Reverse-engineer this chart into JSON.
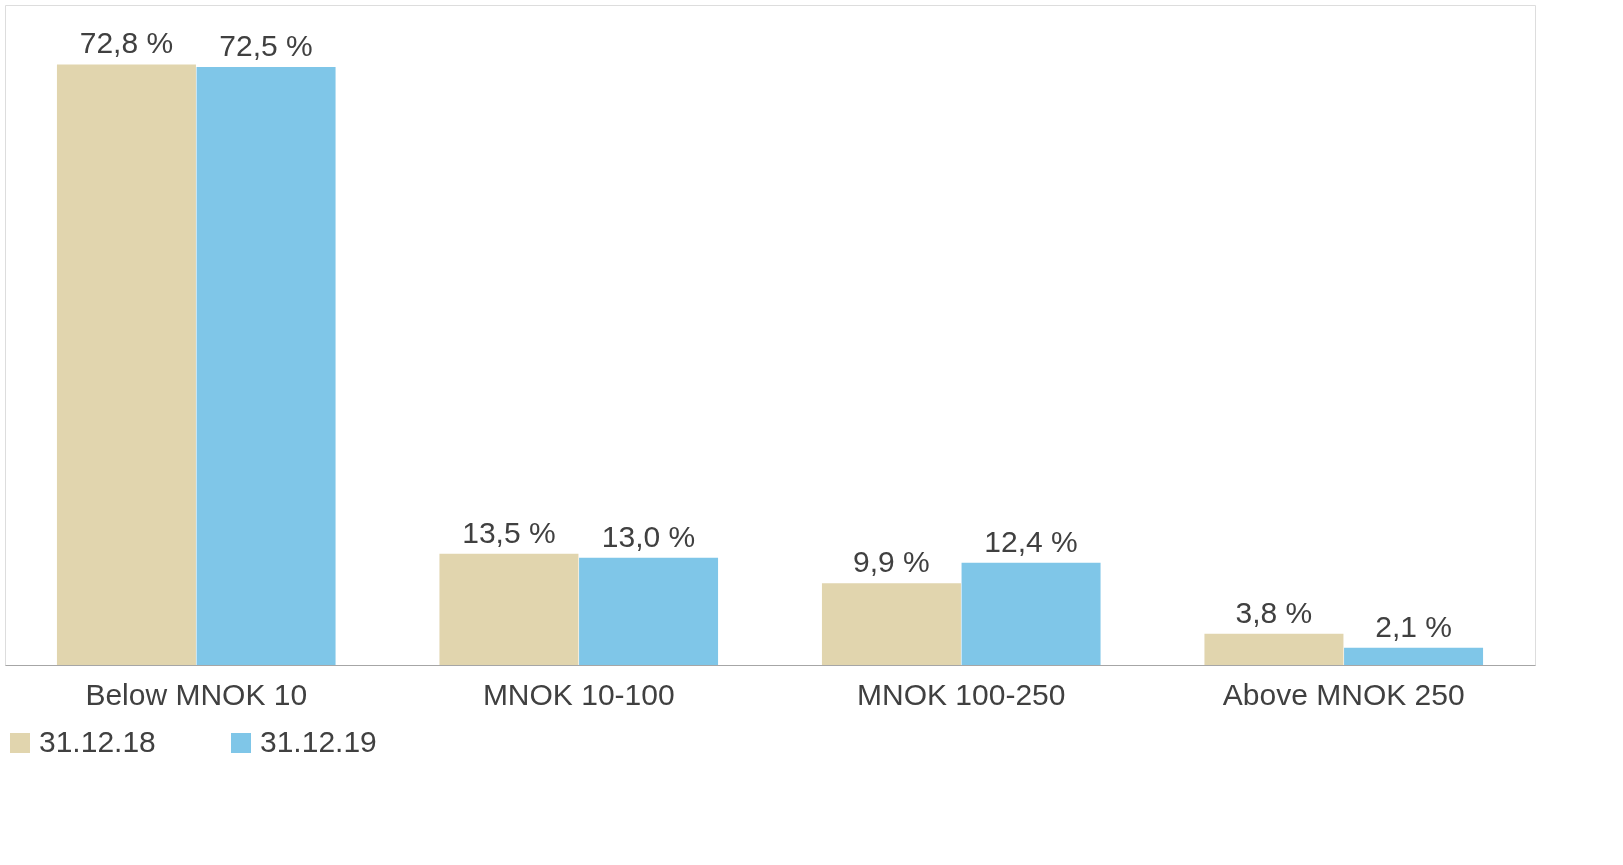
{
  "chart_data": {
    "type": "bar",
    "categories": [
      "Below MNOK 10",
      "MNOK 10-100",
      "MNOK 100-250",
      "Above MNOK 250"
    ],
    "series": [
      {
        "name": "31.12.18",
        "color": "#e1d5ae",
        "values": [
          72.8,
          13.5,
          9.9,
          3.8
        ],
        "value_labels": [
          "72,8 %",
          "13,5 %",
          "9,9 %",
          "3,8 %"
        ]
      },
      {
        "name": "31.12.19",
        "color": "#7fc6e8",
        "values": [
          72.5,
          13.0,
          12.4,
          2.1
        ],
        "value_labels": [
          "72,5 %",
          "13,0 %",
          "12,4 %",
          "2,1 %"
        ]
      }
    ],
    "legend": "bottom",
    "grid": false
  }
}
